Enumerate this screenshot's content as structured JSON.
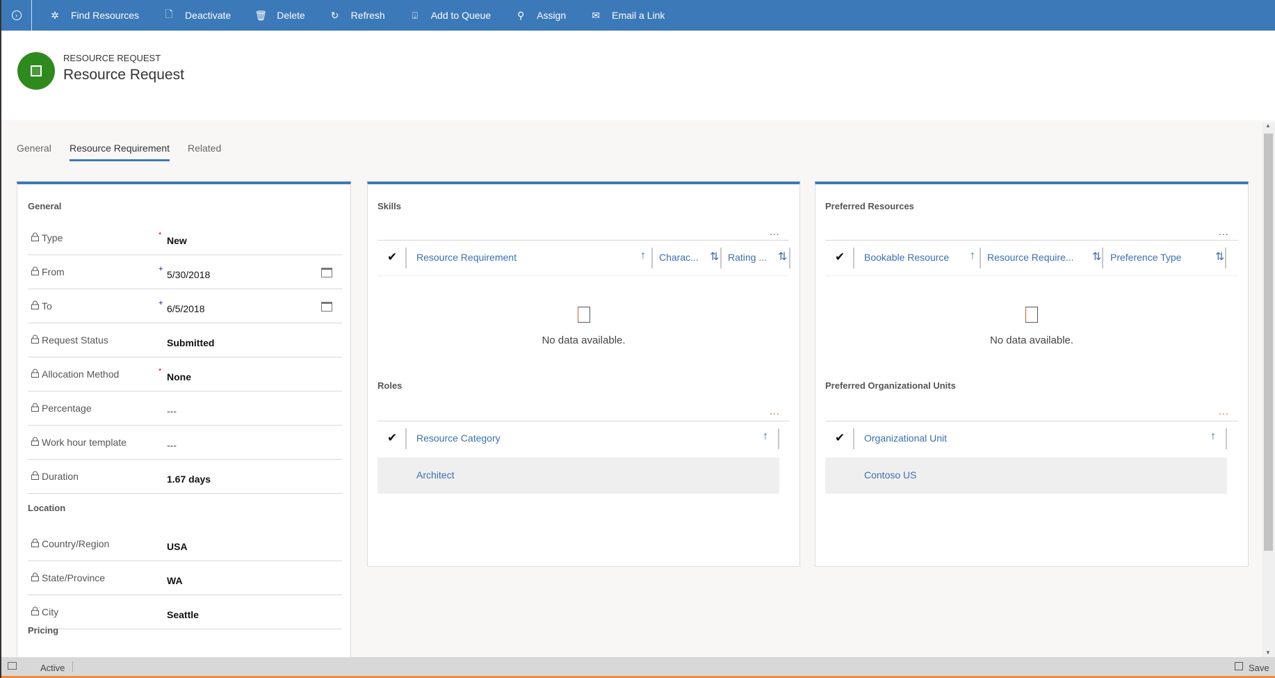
{
  "commandbar": {
    "items": [
      {
        "label": "Find Resources",
        "icon": "find-resources-icon"
      },
      {
        "label": "Deactivate",
        "icon": "deactivate-icon"
      },
      {
        "label": "Delete",
        "icon": "trash-icon"
      },
      {
        "label": "Refresh",
        "icon": "refresh-icon"
      },
      {
        "label": "Add to Queue",
        "icon": "queue-icon"
      },
      {
        "label": "Assign",
        "icon": "assign-icon"
      },
      {
        "label": "Email a Link",
        "icon": "email-icon"
      }
    ]
  },
  "header": {
    "entity_type": "RESOURCE REQUEST",
    "title": "Resource Request",
    "icon_color": "#2f8a1e"
  },
  "tabs": [
    {
      "label": "General"
    },
    {
      "label": "Resource Requirement",
      "active": true
    },
    {
      "label": "Related"
    }
  ],
  "general": {
    "title": "General",
    "fields": [
      {
        "label": "Type",
        "required": "*",
        "value": "New"
      },
      {
        "label": "From",
        "required": "+",
        "value": "5/30/2018"
      },
      {
        "label": "To",
        "required": "+",
        "value": "6/5/2018"
      },
      {
        "label": "Request Status",
        "value": "Submitted"
      },
      {
        "label": "Allocation Method",
        "required": "*",
        "value": "None"
      },
      {
        "label": "Percentage",
        "value": "---"
      },
      {
        "label": "Work hour template",
        "value": "---"
      },
      {
        "label": "Duration",
        "value": "1.67 days"
      }
    ]
  },
  "location": {
    "title": "Location",
    "fields": [
      {
        "label": "Country/Region",
        "value": "USA"
      },
      {
        "label": "State/Province",
        "value": "WA"
      },
      {
        "label": "City",
        "value": "Seattle"
      }
    ]
  },
  "pricing": {
    "title": "Pricing"
  },
  "skills": {
    "title": "Skills",
    "more": "...",
    "columns": [
      "Resource Requirement",
      "Charac...",
      "Rating ..."
    ],
    "empty": "No data available."
  },
  "roles": {
    "title": "Roles",
    "more": "...",
    "columns": [
      "Resource Category"
    ],
    "rows": [
      "Architect"
    ]
  },
  "preferred_resources": {
    "title": "Preferred Resources",
    "more": "...",
    "columns": [
      "Bookable Resource",
      "Resource Require...",
      "Preference Type"
    ],
    "empty": "No data available."
  },
  "preferred_units": {
    "title": "Preferred Organizational Units",
    "more": "...",
    "columns": [
      "Organizational Unit"
    ],
    "rows": [
      "Contoso US"
    ]
  },
  "status": {
    "state": "Active",
    "save": "Save"
  }
}
